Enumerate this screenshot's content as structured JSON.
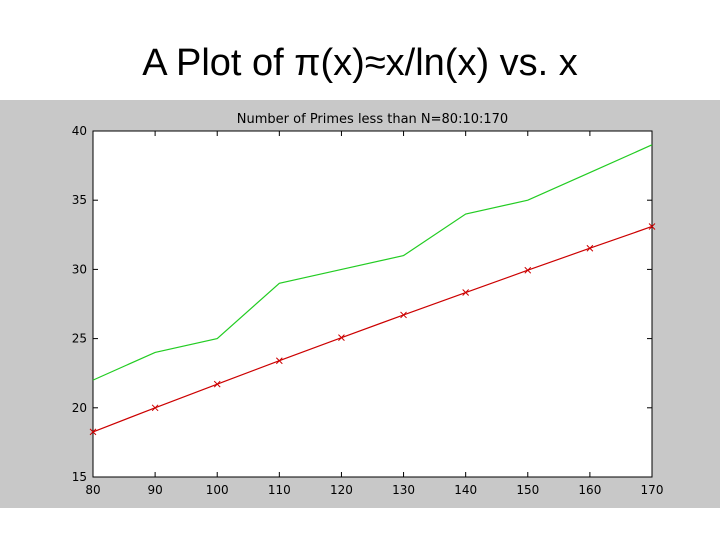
{
  "slide": {
    "title": "A Plot of π(x)≈x/ln(x) vs. x"
  },
  "colors": {
    "figure_background": "#c8c8c8",
    "axes_background": "#ffffff",
    "series_actual": "#22cc22",
    "series_estimate": "#cc0000"
  },
  "chart_data": {
    "type": "line",
    "title": "Number of Primes less than N=80:10:170",
    "xlabel": "",
    "ylabel": "",
    "xlim": [
      80,
      170
    ],
    "ylim": [
      15,
      40
    ],
    "xticks": [
      80,
      90,
      100,
      110,
      120,
      130,
      140,
      150,
      160,
      170
    ],
    "yticks": [
      15,
      20,
      25,
      30,
      35,
      40
    ],
    "grid": false,
    "x": [
      80,
      90,
      100,
      110,
      120,
      130,
      140,
      150,
      160,
      170
    ],
    "series": [
      {
        "values": [
          22,
          24,
          25,
          29,
          30,
          31,
          34,
          35,
          37,
          39
        ],
        "color": "#22cc22",
        "marker": "none"
      },
      {
        "values": [
          18.26,
          20.0,
          21.71,
          23.4,
          25.07,
          26.71,
          28.33,
          29.94,
          31.53,
          33.1
        ],
        "color": "#cc0000",
        "marker": "x"
      }
    ]
  }
}
